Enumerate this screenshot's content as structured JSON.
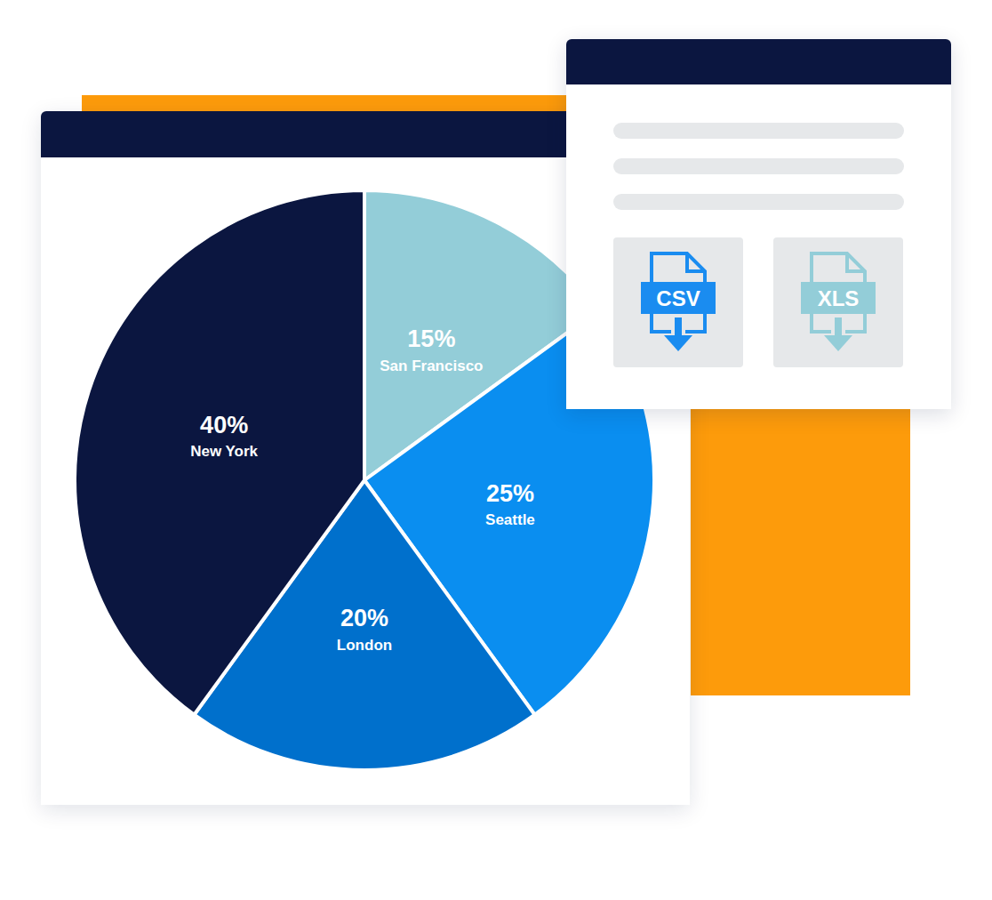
{
  "chart_data": {
    "type": "pie",
    "categories": [
      "San Francisco",
      "Seattle",
      "London",
      "New York"
    ],
    "values": [
      15,
      25,
      20,
      40
    ],
    "value_labels": [
      "15%",
      "25%",
      "20%",
      "40%"
    ],
    "colors": [
      "#93cdd8",
      "#0a8ef0",
      "#0070cc",
      "#0b1640"
    ],
    "data_labels": true,
    "annotations": [
      "CSV",
      "XLS"
    ]
  }
}
